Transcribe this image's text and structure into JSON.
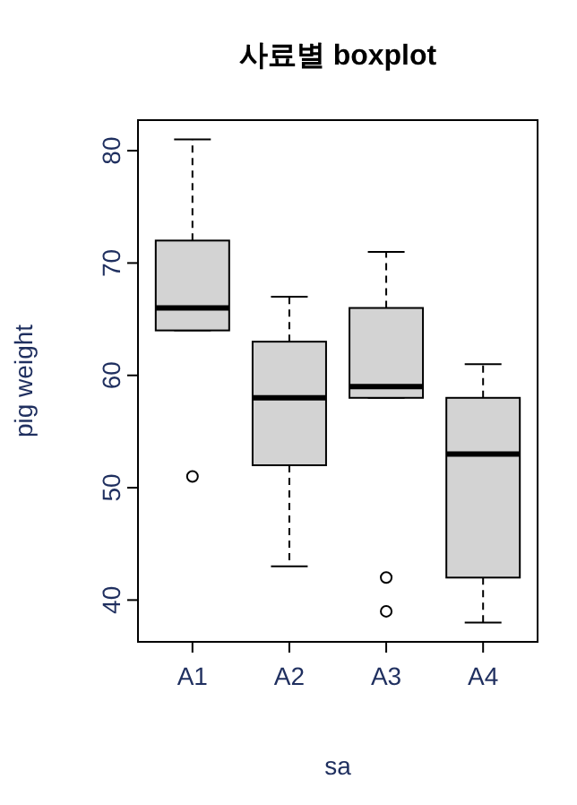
{
  "chart_data": {
    "type": "box",
    "title": "사료별 boxplot",
    "xlabel": "sa",
    "ylabel": "pig weight",
    "categories": [
      "A1",
      "A2",
      "A3",
      "A4"
    ],
    "color": "#d3d3d3",
    "ylim": [
      36.28,
      82.72
    ],
    "yticks": [
      40,
      50,
      60,
      70,
      80
    ],
    "grid": false,
    "boxes": [
      {
        "low": 64,
        "q1": 64,
        "median": 66,
        "q3": 72,
        "high": 81,
        "outliers": [
          51
        ]
      },
      {
        "low": 43,
        "q1": 52,
        "median": 58,
        "q3": 63,
        "high": 67
      },
      {
        "low": 58,
        "q1": 58,
        "median": 59,
        "q3": 66,
        "high": 71,
        "outliers": [
          42,
          39
        ]
      },
      {
        "low": 38,
        "q1": 42,
        "median": 53,
        "q3": 58,
        "high": 61
      }
    ]
  }
}
